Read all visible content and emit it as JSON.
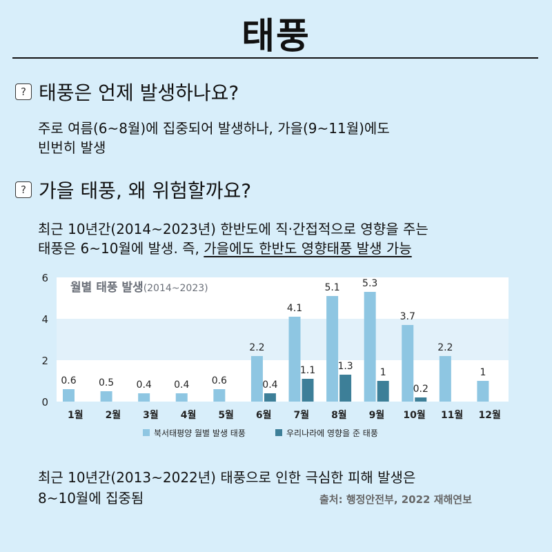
{
  "title": "태풍",
  "q1": {
    "heading": "태풍은 언제 발생하나요?",
    "icon": "question-box-icon",
    "text_line1": "주로 여름(6~8월)에 집중되어 발생하나, 가을(9~11월)에도",
    "text_line2": "빈번히 발생"
  },
  "q2": {
    "heading": "가을 태풍, 왜 위험할까요?",
    "icon": "question-box-icon",
    "text_line1": "최근 10년간(2014~2023년) 한반도에 직·간접적으로 영향을 주는",
    "text_line2_plain": "태풍은 6~10월에 발생. 즉, ",
    "text_line2_underlined": "가을에도 한반도 영향태풍 발생 가능"
  },
  "chart_data": {
    "type": "bar",
    "title_main": "월별 태풍 발생",
    "title_period": "(2014~2023)",
    "categories": [
      "1월",
      "2월",
      "3월",
      "4월",
      "5월",
      "6월",
      "7월",
      "8월",
      "9월",
      "10월",
      "11월",
      "12월"
    ],
    "series": [
      {
        "name": "북서태평양 월별 발생 태풍",
        "color": "#8ec6e2",
        "values": [
          0.6,
          0.5,
          0.4,
          0.4,
          0.6,
          2.2,
          4.1,
          5.1,
          5.3,
          3.7,
          2.2,
          1
        ]
      },
      {
        "name": "우리나라에 영향을 준 태풍",
        "color": "#3d7f98",
        "values": [
          null,
          null,
          null,
          null,
          null,
          0.4,
          1.1,
          1.3,
          1,
          0.2,
          null,
          null
        ]
      }
    ],
    "yticks": [
      0,
      2,
      4,
      6
    ],
    "ylim": [
      0,
      6
    ],
    "legend": "bottom"
  },
  "footer": {
    "line1": "최근 10년간(2013~2022년) 태풍으로 인한 극심한 피해 발생은",
    "line2": "8~10월에 집중됨",
    "source": "출처: 행정안전부, 2022 재해연보"
  }
}
